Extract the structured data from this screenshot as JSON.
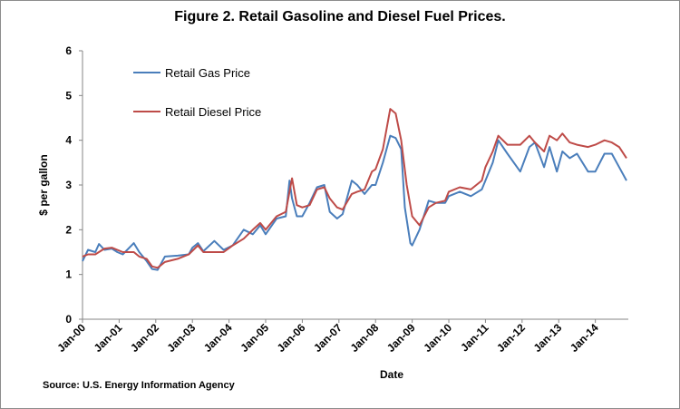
{
  "chart_data": {
    "type": "line",
    "title": "Figure 2. Retail Gasoline and Diesel Fuel Prices.",
    "xlabel": "Date",
    "ylabel": "$ per gallon",
    "ylim": [
      0,
      6
    ],
    "yticks": [
      "0",
      "1",
      "2",
      "3",
      "4",
      "5",
      "6"
    ],
    "xticks": [
      "Jan-00",
      "Jan-01",
      "Jan-02",
      "Jan-03",
      "Jan-04",
      "Jan-05",
      "Jan-06",
      "Jan-07",
      "Jan-08",
      "Jan-09",
      "Jan-10",
      "Jan-11",
      "Jan-12",
      "Jan-13",
      "Jan-14"
    ],
    "grid": false,
    "legend_position": "top-left",
    "series": [
      {
        "name": "Retail Gas Price",
        "color": "#4a7ebb",
        "points": [
          [
            2000.0,
            1.3
          ],
          [
            2000.15,
            1.55
          ],
          [
            2000.35,
            1.5
          ],
          [
            2000.45,
            1.68
          ],
          [
            2000.6,
            1.55
          ],
          [
            2000.8,
            1.58
          ],
          [
            2000.95,
            1.5
          ],
          [
            2001.1,
            1.45
          ],
          [
            2001.4,
            1.7
          ],
          [
            2001.55,
            1.5
          ],
          [
            2001.75,
            1.3
          ],
          [
            2001.9,
            1.12
          ],
          [
            2002.05,
            1.1
          ],
          [
            2002.25,
            1.4
          ],
          [
            2002.6,
            1.42
          ],
          [
            2002.9,
            1.45
          ],
          [
            2003.0,
            1.6
          ],
          [
            2003.15,
            1.7
          ],
          [
            2003.3,
            1.52
          ],
          [
            2003.6,
            1.75
          ],
          [
            2003.85,
            1.55
          ],
          [
            2004.1,
            1.65
          ],
          [
            2004.4,
            2.0
          ],
          [
            2004.65,
            1.9
          ],
          [
            2004.85,
            2.1
          ],
          [
            2005.0,
            1.9
          ],
          [
            2005.3,
            2.25
          ],
          [
            2005.55,
            2.3
          ],
          [
            2005.65,
            3.1
          ],
          [
            2005.72,
            2.7
          ],
          [
            2005.85,
            2.3
          ],
          [
            2006.0,
            2.3
          ],
          [
            2006.2,
            2.6
          ],
          [
            2006.4,
            2.95
          ],
          [
            2006.6,
            3.0
          ],
          [
            2006.75,
            2.4
          ],
          [
            2006.95,
            2.25
          ],
          [
            2007.1,
            2.35
          ],
          [
            2007.35,
            3.1
          ],
          [
            2007.5,
            3.0
          ],
          [
            2007.7,
            2.8
          ],
          [
            2007.9,
            3.0
          ],
          [
            2008.0,
            3.0
          ],
          [
            2008.2,
            3.5
          ],
          [
            2008.4,
            4.1
          ],
          [
            2008.55,
            4.05
          ],
          [
            2008.7,
            3.8
          ],
          [
            2008.8,
            2.5
          ],
          [
            2008.95,
            1.7
          ],
          [
            2009.0,
            1.65
          ],
          [
            2009.2,
            2.0
          ],
          [
            2009.45,
            2.65
          ],
          [
            2009.65,
            2.6
          ],
          [
            2009.9,
            2.6
          ],
          [
            2010.0,
            2.75
          ],
          [
            2010.3,
            2.85
          ],
          [
            2010.6,
            2.75
          ],
          [
            2010.9,
            2.9
          ],
          [
            2011.0,
            3.1
          ],
          [
            2011.2,
            3.5
          ],
          [
            2011.35,
            4.0
          ],
          [
            2011.6,
            3.7
          ],
          [
            2011.95,
            3.3
          ],
          [
            2012.2,
            3.85
          ],
          [
            2012.35,
            3.95
          ],
          [
            2012.6,
            3.4
          ],
          [
            2012.75,
            3.85
          ],
          [
            2012.95,
            3.3
          ],
          [
            2013.1,
            3.75
          ],
          [
            2013.3,
            3.6
          ],
          [
            2013.5,
            3.7
          ],
          [
            2013.8,
            3.3
          ],
          [
            2014.0,
            3.3
          ],
          [
            2014.25,
            3.7
          ],
          [
            2014.45,
            3.7
          ],
          [
            2014.65,
            3.4
          ],
          [
            2014.85,
            3.1
          ]
        ]
      },
      {
        "name": "Retail Diesel Price",
        "color": "#be4b48",
        "points": [
          [
            2000.0,
            1.4
          ],
          [
            2000.15,
            1.45
          ],
          [
            2000.35,
            1.45
          ],
          [
            2000.6,
            1.58
          ],
          [
            2000.8,
            1.6
          ],
          [
            2000.95,
            1.55
          ],
          [
            2001.1,
            1.5
          ],
          [
            2001.4,
            1.5
          ],
          [
            2001.55,
            1.4
          ],
          [
            2001.75,
            1.35
          ],
          [
            2001.9,
            1.18
          ],
          [
            2002.05,
            1.15
          ],
          [
            2002.25,
            1.28
          ],
          [
            2002.6,
            1.35
          ],
          [
            2002.9,
            1.45
          ],
          [
            2003.15,
            1.65
          ],
          [
            2003.3,
            1.5
          ],
          [
            2003.6,
            1.5
          ],
          [
            2003.85,
            1.5
          ],
          [
            2004.1,
            1.65
          ],
          [
            2004.4,
            1.8
          ],
          [
            2004.65,
            2.0
          ],
          [
            2004.85,
            2.15
          ],
          [
            2005.0,
            2.0
          ],
          [
            2005.3,
            2.3
          ],
          [
            2005.55,
            2.4
          ],
          [
            2005.72,
            3.15
          ],
          [
            2005.85,
            2.55
          ],
          [
            2006.0,
            2.5
          ],
          [
            2006.2,
            2.55
          ],
          [
            2006.4,
            2.9
          ],
          [
            2006.6,
            2.95
          ],
          [
            2006.75,
            2.7
          ],
          [
            2006.95,
            2.5
          ],
          [
            2007.1,
            2.45
          ],
          [
            2007.35,
            2.8
          ],
          [
            2007.5,
            2.85
          ],
          [
            2007.7,
            2.9
          ],
          [
            2007.9,
            3.3
          ],
          [
            2008.0,
            3.35
          ],
          [
            2008.2,
            3.8
          ],
          [
            2008.4,
            4.7
          ],
          [
            2008.55,
            4.6
          ],
          [
            2008.7,
            4.0
          ],
          [
            2008.85,
            3.0
          ],
          [
            2009.0,
            2.3
          ],
          [
            2009.2,
            2.1
          ],
          [
            2009.45,
            2.5
          ],
          [
            2009.65,
            2.6
          ],
          [
            2009.9,
            2.65
          ],
          [
            2010.0,
            2.85
          ],
          [
            2010.3,
            2.95
          ],
          [
            2010.6,
            2.9
          ],
          [
            2010.9,
            3.1
          ],
          [
            2011.0,
            3.4
          ],
          [
            2011.2,
            3.75
          ],
          [
            2011.35,
            4.1
          ],
          [
            2011.6,
            3.9
          ],
          [
            2011.95,
            3.9
          ],
          [
            2012.2,
            4.1
          ],
          [
            2012.35,
            3.95
          ],
          [
            2012.6,
            3.75
          ],
          [
            2012.75,
            4.1
          ],
          [
            2012.95,
            4.0
          ],
          [
            2013.1,
            4.15
          ],
          [
            2013.3,
            3.95
          ],
          [
            2013.5,
            3.9
          ],
          [
            2013.8,
            3.85
          ],
          [
            2014.0,
            3.9
          ],
          [
            2014.25,
            4.0
          ],
          [
            2014.45,
            3.95
          ],
          [
            2014.65,
            3.85
          ],
          [
            2014.85,
            3.6
          ]
        ]
      }
    ]
  },
  "source": "Source:  U.S. Energy Information Agency"
}
